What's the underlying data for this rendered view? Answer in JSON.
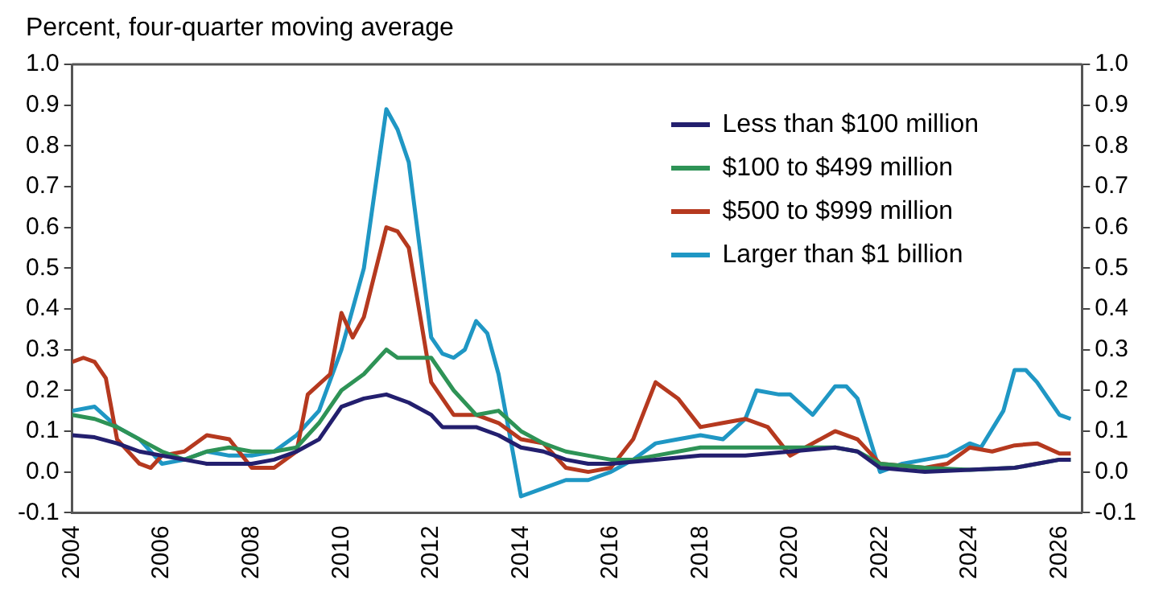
{
  "chart_data": {
    "type": "line",
    "title": "Percent, four-quarter moving average",
    "xlim": [
      2004,
      2026.5
    ],
    "xticks": [
      2004,
      2006,
      2008,
      2010,
      2012,
      2014,
      2016,
      2018,
      2020,
      2022,
      2024,
      2026
    ],
    "ylim": [
      -0.1,
      1.0
    ],
    "yticks": [
      {
        "value": -0.1,
        "label": "-0.1"
      },
      {
        "value": 0,
        "label": "0.0"
      },
      0.1,
      0.2,
      0.3,
      0.4,
      0.5,
      0.6,
      0.7,
      0.8,
      0.9,
      {
        "value": 1,
        "label": "1.0"
      }
    ],
    "y2lim": [
      -0.1,
      1.0
    ],
    "y2ticks": [
      {
        "value": -0.1,
        "label": "-0.1"
      },
      {
        "value": 0,
        "label": "0.0"
      },
      0.1,
      0.2,
      0.3,
      0.4,
      0.5,
      0.6,
      0.7,
      0.8,
      0.9,
      {
        "value": 1,
        "label": "1.0"
      }
    ],
    "grid": false,
    "legend": "top right",
    "marker": "none",
    "line_style": "solid",
    "series": [
      {
        "name": "Less than $100 million",
        "color": "#231f6e",
        "x": [
          2004,
          2004.5,
          2005,
          2005.5,
          2006,
          2006.5,
          2007,
          2008,
          2008.5,
          2009,
          2009.5,
          2010,
          2010.5,
          2011,
          2011.5,
          2012,
          2012.25,
          2013,
          2013.5,
          2014,
          2014.5,
          2015,
          2015.5,
          2016,
          2017,
          2018,
          2019,
          2020,
          2021,
          2021.5,
          2022,
          2023,
          2024,
          2025,
          2026,
          2026.25
        ],
        "values": [
          0.09,
          0.085,
          0.07,
          0.05,
          0.04,
          0.03,
          0.02,
          0.02,
          0.03,
          0.05,
          0.08,
          0.16,
          0.18,
          0.19,
          0.17,
          0.14,
          0.11,
          0.11,
          0.09,
          0.06,
          0.05,
          0.03,
          0.02,
          0.02,
          0.03,
          0.04,
          0.04,
          0.05,
          0.06,
          0.05,
          0.01,
          0.0,
          0.005,
          0.01,
          0.03,
          0.03
        ]
      },
      {
        "name": "$100 to $499 million",
        "color": "#2e9356",
        "x": [
          2004,
          2004.5,
          2005,
          2005.5,
          2006,
          2006.5,
          2007,
          2007.5,
          2008,
          2008.5,
          2009,
          2009.5,
          2010,
          2010.5,
          2011,
          2011.25,
          2012,
          2012.5,
          2013,
          2013.5,
          2014,
          2014.5,
          2015,
          2015.5,
          2016,
          2016.5,
          2017,
          2018,
          2019,
          2020,
          2021,
          2021.5,
          2022,
          2023,
          2024,
          2025,
          2026,
          2026.25
        ],
        "values": [
          0.14,
          0.13,
          0.11,
          0.08,
          0.05,
          0.03,
          0.05,
          0.06,
          0.05,
          0.05,
          0.06,
          0.12,
          0.2,
          0.24,
          0.3,
          0.28,
          0.28,
          0.2,
          0.14,
          0.15,
          0.1,
          0.07,
          0.05,
          0.04,
          0.03,
          0.03,
          0.04,
          0.06,
          0.06,
          0.06,
          0.06,
          0.05,
          0.02,
          0.01,
          0.005,
          0.01,
          0.03,
          0.03
        ]
      },
      {
        "name": "$500 to $999 million",
        "color": "#b5391f",
        "x": [
          2004,
          2004.25,
          2004.5,
          2004.75,
          2005,
          2005.5,
          2005.75,
          2006,
          2006.5,
          2007,
          2007.5,
          2008,
          2008.5,
          2009,
          2009.25,
          2009.75,
          2010,
          2010.25,
          2010.5,
          2011,
          2011.25,
          2011.5,
          2012,
          2012.5,
          2013,
          2013.5,
          2014,
          2014.5,
          2015,
          2015.5,
          2016,
          2016.5,
          2017,
          2017.5,
          2018,
          2018.5,
          2019,
          2019.5,
          2020,
          2020.5,
          2021,
          2021.5,
          2022,
          2023,
          2023.5,
          2024,
          2024.5,
          2025,
          2025.5,
          2026,
          2026.25
        ],
        "values": [
          0.27,
          0.28,
          0.27,
          0.23,
          0.08,
          0.02,
          0.01,
          0.04,
          0.05,
          0.09,
          0.08,
          0.01,
          0.01,
          0.05,
          0.19,
          0.24,
          0.39,
          0.33,
          0.38,
          0.6,
          0.59,
          0.55,
          0.22,
          0.14,
          0.14,
          0.12,
          0.08,
          0.07,
          0.01,
          0.0,
          0.01,
          0.08,
          0.22,
          0.18,
          0.11,
          0.12,
          0.13,
          0.11,
          0.04,
          0.07,
          0.1,
          0.08,
          0.02,
          0.01,
          0.02,
          0.06,
          0.05,
          0.065,
          0.07,
          0.045,
          0.045
        ]
      },
      {
        "name": "Larger than $1 billion",
        "color": "#1f97c4",
        "x": [
          2004,
          2004.5,
          2005,
          2005.5,
          2006,
          2006.5,
          2007,
          2007.5,
          2008,
          2008.5,
          2009,
          2009.5,
          2010,
          2010.5,
          2011,
          2011.25,
          2011.5,
          2012,
          2012.25,
          2012.5,
          2012.75,
          2013,
          2013.25,
          2013.5,
          2014,
          2014.5,
          2015,
          2015.5,
          2016,
          2016.5,
          2017,
          2017.5,
          2018,
          2018.5,
          2019,
          2019.25,
          2019.75,
          2020,
          2020.5,
          2021,
          2021.25,
          2021.5,
          2022,
          2022.5,
          2023,
          2023.5,
          2024,
          2024.25,
          2024.75,
          2025,
          2025.25,
          2025.5,
          2026,
          2026.25
        ],
        "values": [
          0.15,
          0.16,
          0.11,
          0.08,
          0.02,
          0.03,
          0.05,
          0.04,
          0.04,
          0.05,
          0.09,
          0.15,
          0.3,
          0.5,
          0.89,
          0.84,
          0.76,
          0.33,
          0.29,
          0.28,
          0.3,
          0.37,
          0.34,
          0.24,
          -0.06,
          -0.04,
          -0.02,
          -0.02,
          0.0,
          0.03,
          0.07,
          0.08,
          0.09,
          0.08,
          0.13,
          0.2,
          0.19,
          0.19,
          0.14,
          0.21,
          0.21,
          0.18,
          0.0,
          0.02,
          0.03,
          0.04,
          0.07,
          0.06,
          0.15,
          0.25,
          0.25,
          0.22,
          0.14,
          0.13
        ]
      }
    ]
  }
}
